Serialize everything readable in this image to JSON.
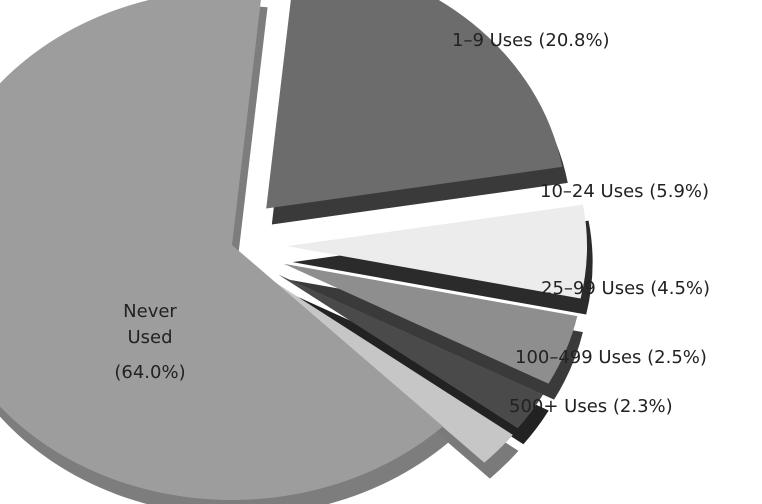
{
  "chart_data": {
    "type": "pie",
    "title": "",
    "exploded": true,
    "style": "3d",
    "slices": [
      {
        "label": "1–9 Uses (20.8%)",
        "value": 20.8,
        "color": "#6c6c6c",
        "side": "#3a3a3a"
      },
      {
        "label": "10–24 Uses (5.9%)",
        "value": 5.9,
        "color": "#ececec",
        "side": "#2b2b2b"
      },
      {
        "label": "25–99 Uses (4.5%)",
        "value": 4.5,
        "color": "#8e8e8e",
        "side": "#3a3a3a"
      },
      {
        "label": "100–499 Uses (2.5%)",
        "value": 2.5,
        "color": "#4a4a4a",
        "side": "#222222"
      },
      {
        "label": "500+ Uses (2.3%)",
        "value": 2.3,
        "color": "#c6c6c6",
        "side": "#7a7a7a"
      },
      {
        "label": "Never Used (64.0%)",
        "label_lines": [
          "Never",
          "Used",
          "(64.0%)"
        ],
        "value": 64.0,
        "color": "#9d9d9d",
        "side": "#7d7d7d"
      }
    ]
  }
}
